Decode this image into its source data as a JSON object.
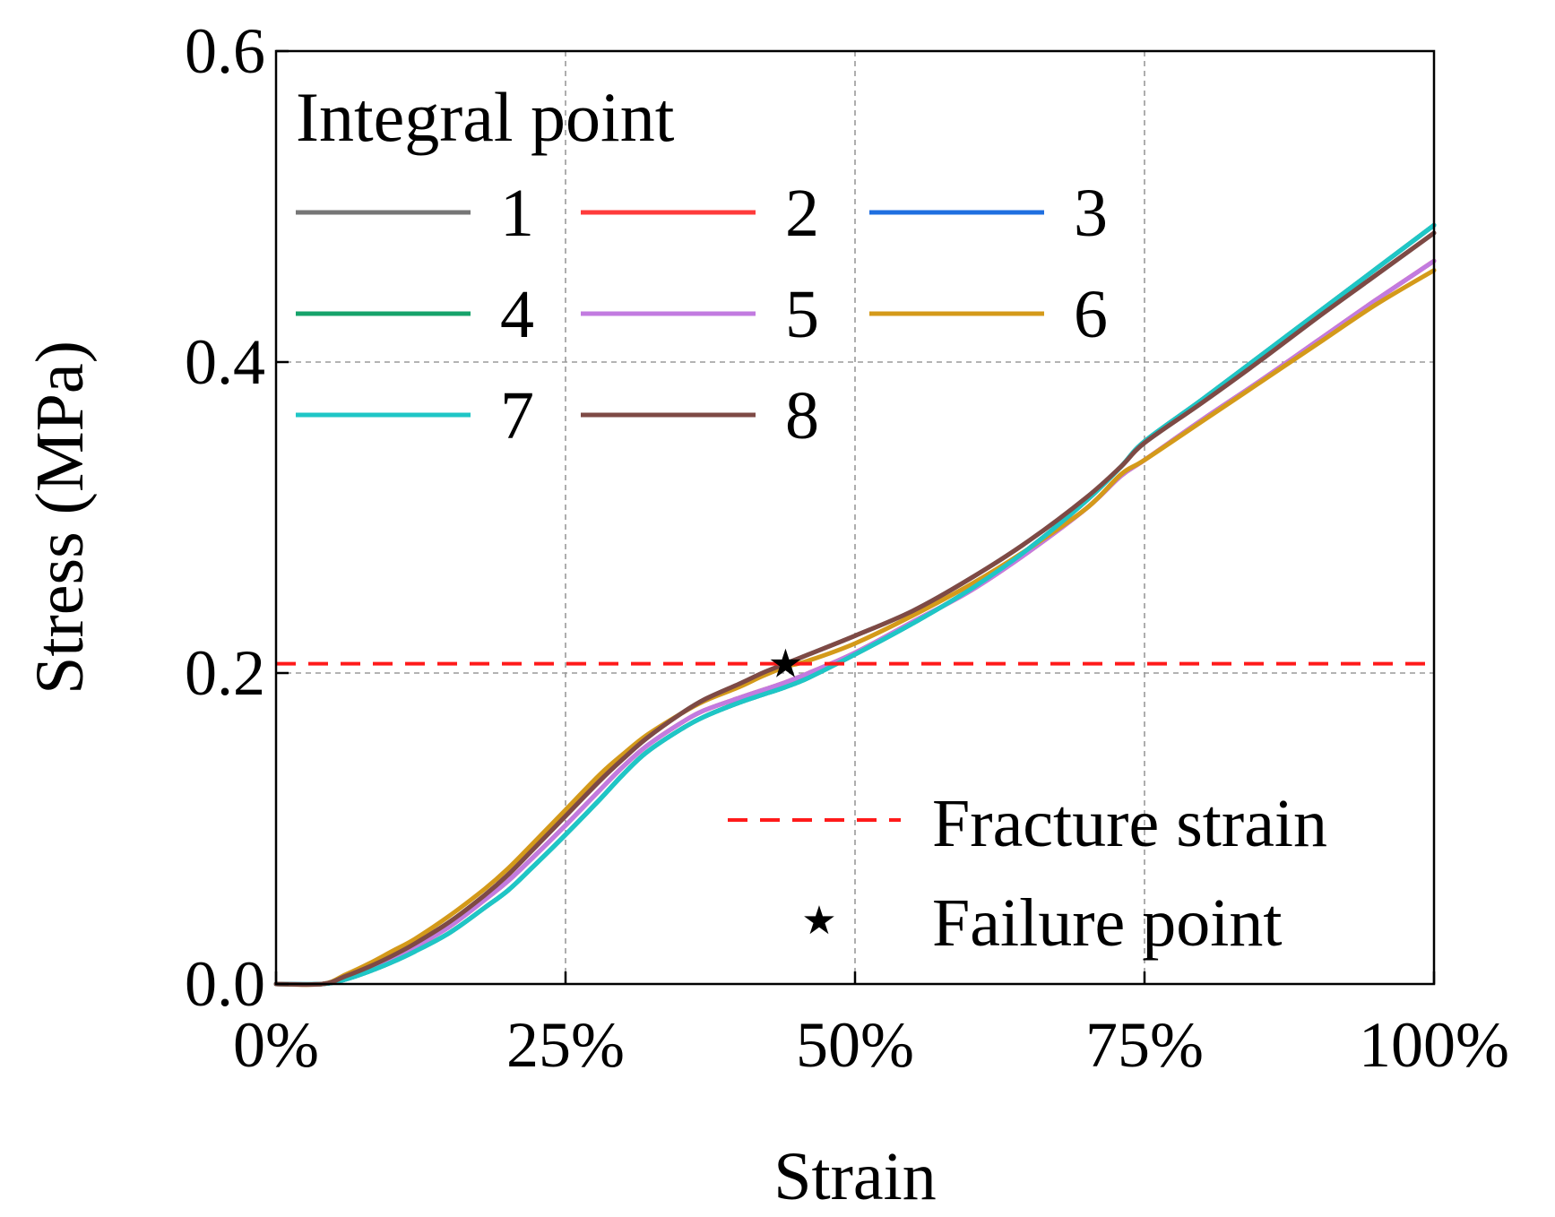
{
  "chart_data": {
    "type": "line",
    "title": "",
    "xlabel": "Strain",
    "ylabel": "Stress (MPa)",
    "xlim": [
      0,
      100
    ],
    "ylim": [
      0,
      0.6
    ],
    "x_ticks": [
      0,
      25,
      50,
      75,
      100
    ],
    "x_tick_labels": [
      "0%",
      "25%",
      "50%",
      "75%",
      "100%"
    ],
    "y_ticks": [
      0,
      0.2,
      0.4,
      0.6
    ],
    "y_tick_labels": [
      "0.0",
      "0.2",
      "0.4",
      "0.6"
    ],
    "grid": true,
    "legend_title": "Integral point",
    "legend_placement": "top-left",
    "x": [
      0,
      4,
      6,
      8,
      10,
      12,
      15,
      18,
      20,
      22,
      25,
      28,
      30,
      32,
      35,
      37,
      40,
      42,
      44,
      46,
      50,
      55,
      60,
      65,
      70,
      73,
      75,
      80,
      85,
      90,
      95,
      100
    ],
    "series": [
      {
        "name": "1",
        "color": "#767676",
        "values": [
          0,
          0,
          0.005,
          0.011,
          0.018,
          0.026,
          0.04,
          0.057,
          0.07,
          0.085,
          0.108,
          0.131,
          0.145,
          0.158,
          0.174,
          0.183,
          0.193,
          0.2,
          0.206,
          0.212,
          0.224,
          0.24,
          0.261,
          0.285,
          0.313,
          0.333,
          0.348,
          0.374,
          0.401,
          0.429,
          0.456,
          0.483
        ]
      },
      {
        "name": "2",
        "color": "#ff3b3b",
        "values": [
          0,
          0,
          0.004,
          0.01,
          0.017,
          0.024,
          0.037,
          0.054,
          0.066,
          0.08,
          0.102,
          0.125,
          0.14,
          0.153,
          0.168,
          0.176,
          0.184,
          0.189,
          0.194,
          0.2,
          0.213,
          0.233,
          0.253,
          0.278,
          0.306,
          0.327,
          0.337,
          0.363,
          0.388,
          0.414,
          0.44,
          0.465
        ]
      },
      {
        "name": "3",
        "color": "#1f6fe0",
        "values": [
          0,
          0,
          0.003,
          0.008,
          0.014,
          0.021,
          0.033,
          0.049,
          0.06,
          0.074,
          0.096,
          0.119,
          0.135,
          0.149,
          0.164,
          0.172,
          0.181,
          0.186,
          0.191,
          0.197,
          0.212,
          0.232,
          0.254,
          0.28,
          0.311,
          0.333,
          0.349,
          0.376,
          0.404,
          0.432,
          0.46,
          0.488
        ]
      },
      {
        "name": "4",
        "color": "#16a36b",
        "values": [
          0,
          0,
          0.003,
          0.008,
          0.014,
          0.021,
          0.033,
          0.049,
          0.06,
          0.074,
          0.096,
          0.119,
          0.135,
          0.149,
          0.164,
          0.172,
          0.181,
          0.186,
          0.191,
          0.197,
          0.212,
          0.232,
          0.254,
          0.28,
          0.311,
          0.333,
          0.349,
          0.376,
          0.404,
          0.432,
          0.46,
          0.488
        ]
      },
      {
        "name": "5",
        "color": "#c27be0",
        "values": [
          0,
          0,
          0.004,
          0.01,
          0.017,
          0.024,
          0.037,
          0.054,
          0.066,
          0.08,
          0.102,
          0.125,
          0.14,
          0.153,
          0.168,
          0.176,
          0.184,
          0.189,
          0.194,
          0.2,
          0.213,
          0.233,
          0.253,
          0.278,
          0.306,
          0.327,
          0.337,
          0.363,
          0.388,
          0.414,
          0.44,
          0.465
        ]
      },
      {
        "name": "6",
        "color": "#d49a1a",
        "values": [
          0,
          0,
          0.006,
          0.013,
          0.021,
          0.029,
          0.044,
          0.061,
          0.074,
          0.089,
          0.112,
          0.135,
          0.148,
          0.16,
          0.174,
          0.182,
          0.191,
          0.198,
          0.204,
          0.208,
          0.219,
          0.237,
          0.257,
          0.28,
          0.306,
          0.328,
          0.337,
          0.362,
          0.387,
          0.412,
          0.437,
          0.459
        ]
      },
      {
        "name": "7",
        "color": "#1fc6c6",
        "values": [
          0,
          0,
          0.003,
          0.008,
          0.014,
          0.021,
          0.033,
          0.049,
          0.06,
          0.074,
          0.096,
          0.119,
          0.135,
          0.149,
          0.164,
          0.172,
          0.181,
          0.186,
          0.191,
          0.197,
          0.212,
          0.232,
          0.254,
          0.28,
          0.311,
          0.333,
          0.349,
          0.376,
          0.404,
          0.432,
          0.46,
          0.488
        ]
      },
      {
        "name": "8",
        "color": "#7e4a45",
        "values": [
          0,
          0,
          0.005,
          0.011,
          0.018,
          0.026,
          0.04,
          0.057,
          0.07,
          0.085,
          0.108,
          0.131,
          0.145,
          0.158,
          0.174,
          0.183,
          0.193,
          0.2,
          0.206,
          0.212,
          0.224,
          0.24,
          0.261,
          0.285,
          0.313,
          0.333,
          0.348,
          0.374,
          0.401,
          0.429,
          0.456,
          0.483
        ]
      }
    ],
    "reference_line": {
      "name": "Fracture strain",
      "y": 0.206,
      "color": "#ff1a1a",
      "style": "dashed"
    },
    "marker": {
      "name": "Failure point",
      "x": 44,
      "y": 0.206,
      "symbol": "★",
      "color": "#000000"
    }
  }
}
